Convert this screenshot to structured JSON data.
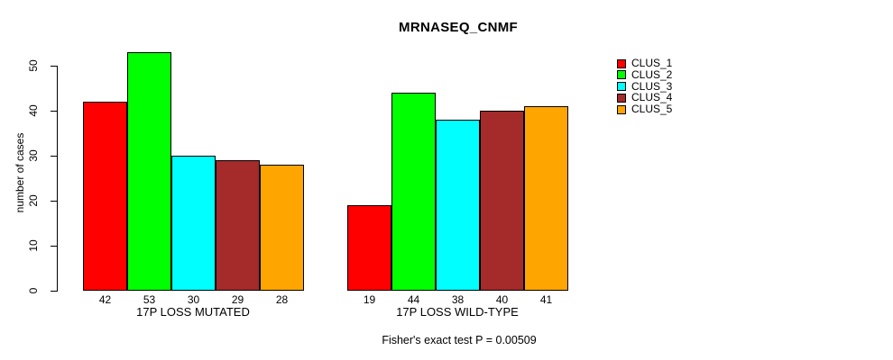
{
  "title": "MRNASEQ_CNMF",
  "footer_note": "Fisher's exact test P = 0.00509",
  "legend": {
    "items": [
      {
        "label": "CLUS_1",
        "color": "#FF0000"
      },
      {
        "label": "CLUS_2",
        "color": "#00FF00"
      },
      {
        "label": "CLUS_3",
        "color": "#00FFFF"
      },
      {
        "label": "CLUS_4",
        "color": "#A52A2A"
      },
      {
        "label": "CLUS_5",
        "color": "#FFA500"
      }
    ]
  },
  "chart_data": {
    "type": "bar",
    "title": "MRNASEQ_CNMF",
    "xlabel": "",
    "ylabel": "number of cases",
    "ylim": [
      0,
      53
    ],
    "yticks": [
      0,
      10,
      20,
      30,
      40,
      50
    ],
    "grid": false,
    "legend_position": "right",
    "series": [
      {
        "name": "CLUS_1",
        "color": "#FF0000",
        "values": [
          42,
          19
        ]
      },
      {
        "name": "CLUS_2",
        "color": "#00FF00",
        "values": [
          53,
          44
        ]
      },
      {
        "name": "CLUS_3",
        "color": "#00FFFF",
        "values": [
          30,
          38
        ]
      },
      {
        "name": "CLUS_4",
        "color": "#A52A2A",
        "values": [
          29,
          40
        ]
      },
      {
        "name": "CLUS_5",
        "color": "#FFA500",
        "values": [
          28,
          41
        ]
      }
    ],
    "groups": [
      {
        "label": "17P LOSS MUTATED",
        "values": [
          42,
          53,
          30,
          29,
          28
        ]
      },
      {
        "label": "17P LOSS WILD-TYPE",
        "values": [
          19,
          44,
          38,
          40,
          41
        ]
      }
    ],
    "bar_value_labels_shown": true,
    "annotation": "Fisher's exact test P = 0.00509"
  }
}
